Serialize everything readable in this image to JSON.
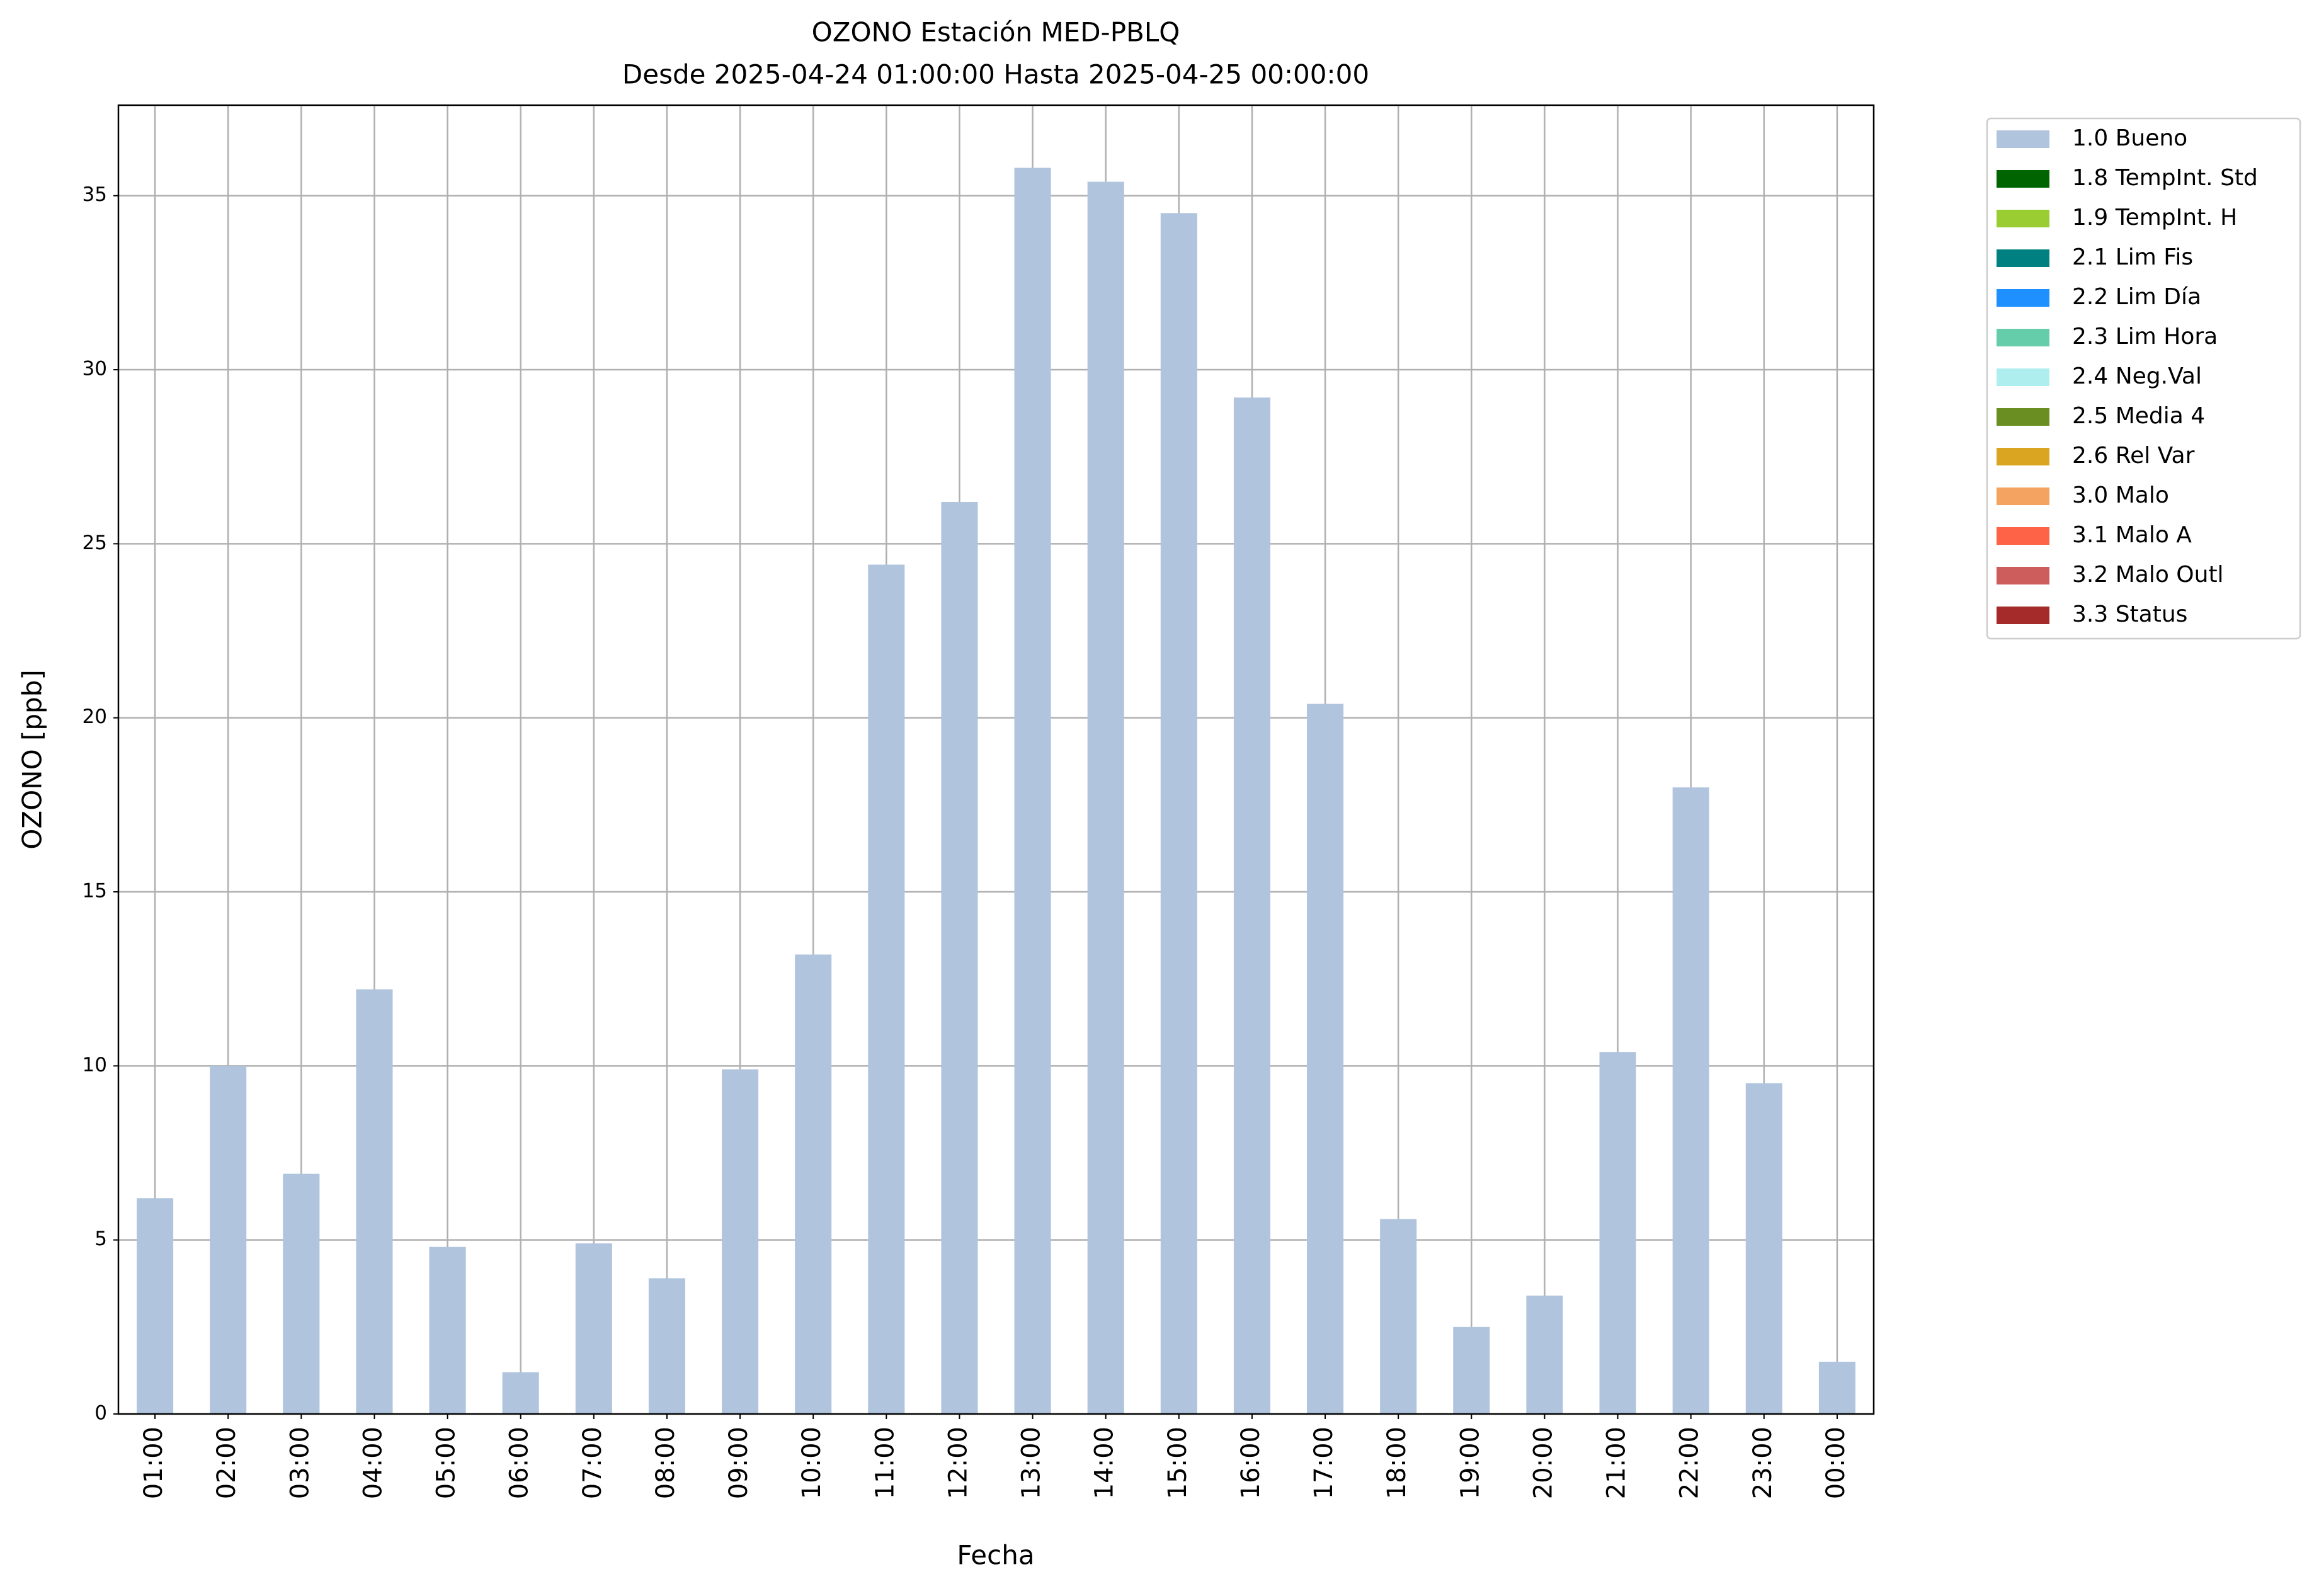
{
  "chart_data": {
    "type": "bar",
    "title": "OZONO Estación MED-PBLQ",
    "subtitle": "Desde 2025-04-24 01:00:00 Hasta 2025-04-25 00:00:00",
    "x_label": "Fecha",
    "y_label": "OZONO [ppb]",
    "categories": [
      "01:00",
      "02:00",
      "03:00",
      "04:00",
      "05:00",
      "06:00",
      "07:00",
      "08:00",
      "09:00",
      "10:00",
      "11:00",
      "12:00",
      "13:00",
      "14:00",
      "15:00",
      "16:00",
      "17:00",
      "18:00",
      "19:00",
      "20:00",
      "21:00",
      "22:00",
      "23:00",
      "00:00"
    ],
    "series": [
      {
        "name": "1.0 Bueno",
        "color": "#b0c4de",
        "values": [
          6.2,
          10.0,
          6.9,
          12.2,
          4.8,
          1.2,
          4.9,
          3.9,
          9.9,
          13.2,
          24.4,
          26.2,
          35.8,
          35.4,
          34.5,
          29.2,
          20.4,
          5.6,
          2.5,
          3.4,
          10.4,
          18.0,
          9.5,
          1.5
        ]
      },
      {
        "name": "1.8 TempInt. Std",
        "color": "#006400"
      },
      {
        "name": "1.9 TempInt. H",
        "color": "#9acd32"
      },
      {
        "name": "2.1 Lim Fis",
        "color": "#008080"
      },
      {
        "name": "2.2 Lim Día",
        "color": "#1e90ff"
      },
      {
        "name": "2.3 Lim Hora",
        "color": "#66cdaa"
      },
      {
        "name": "2.4 Neg.Val",
        "color": "#afeeee"
      },
      {
        "name": "2.5 Media 4",
        "color": "#6b8e23"
      },
      {
        "name": "2.6 Rel Var",
        "color": "#daa520"
      },
      {
        "name": "3.0 Malo",
        "color": "#f4a460"
      },
      {
        "name": "3.1 Malo A",
        "color": "#ff6347"
      },
      {
        "name": "3.2 Malo Outl",
        "color": "#cd5c5c"
      },
      {
        "name": "3.3 Status",
        "color": "#a52a2a"
      }
    ],
    "ylim": [
      0,
      37.6
    ],
    "yticks": [
      0,
      5,
      10,
      15,
      20,
      25,
      30,
      35
    ],
    "grid": true,
    "legend": "outside-upper-right"
  }
}
